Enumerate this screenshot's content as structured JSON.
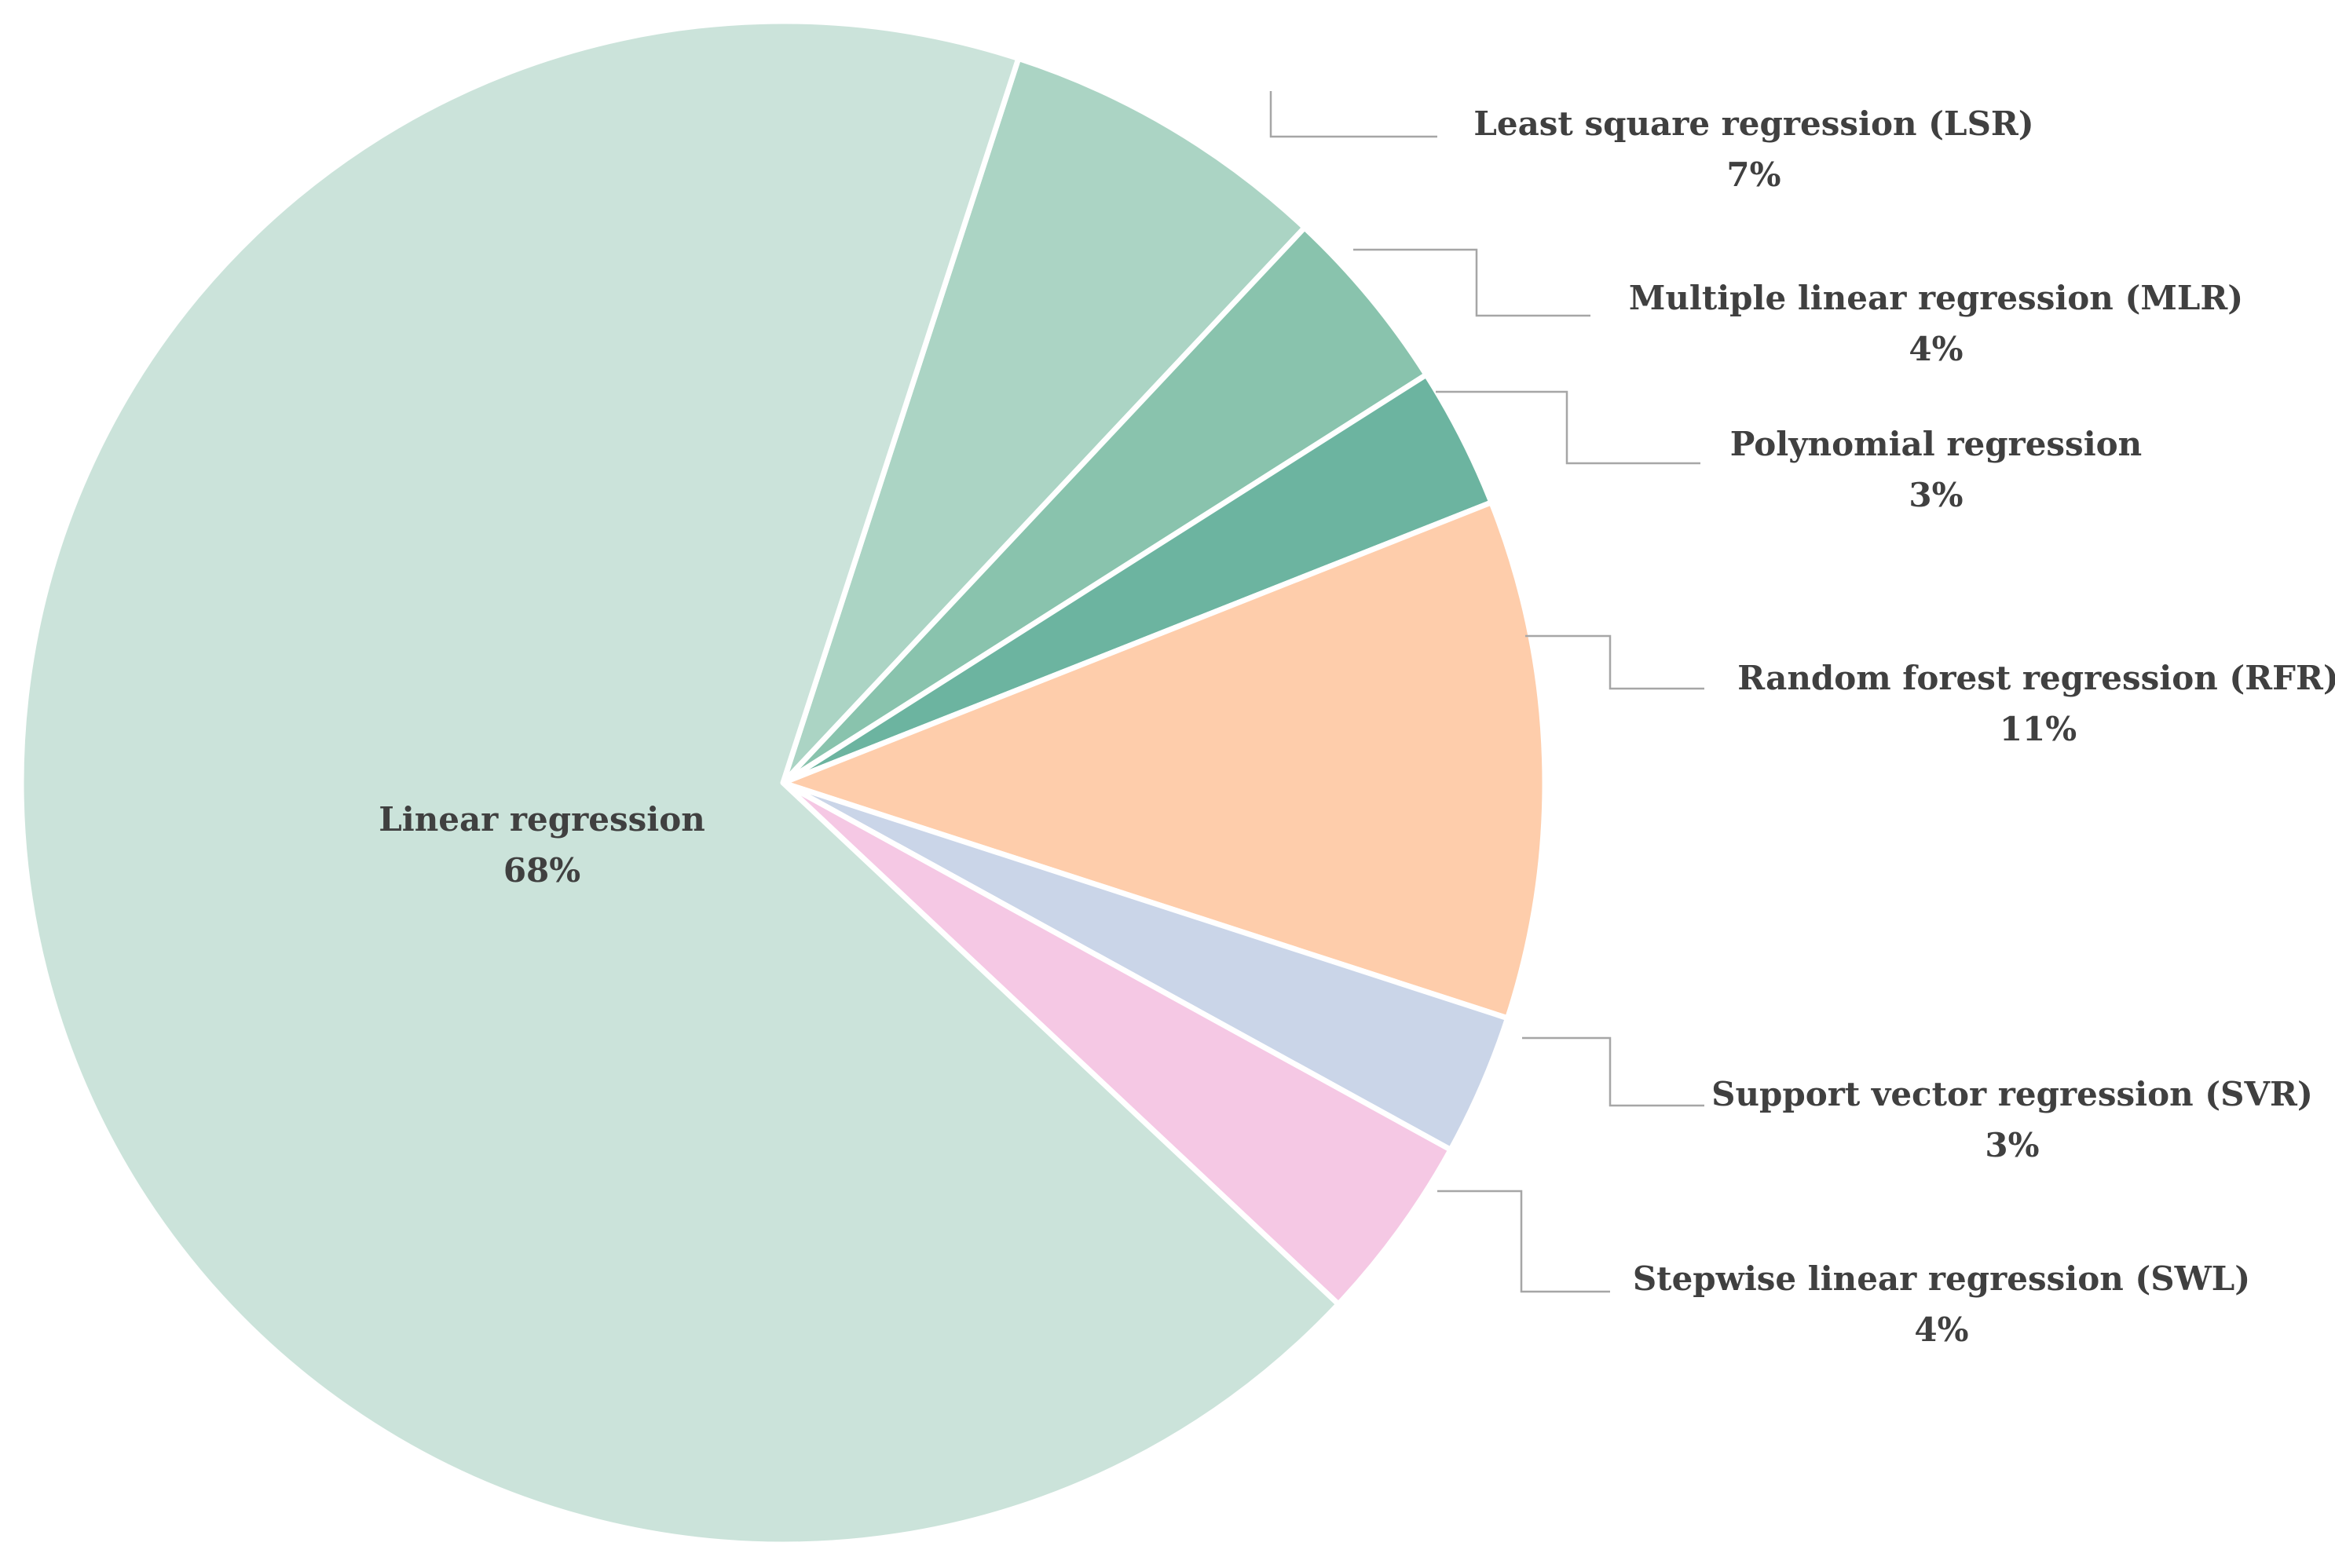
{
  "chart_data": {
    "type": "pie",
    "title": "",
    "start_angle_deg": 18,
    "direction": "clockwise",
    "slices": [
      {
        "label": "Least square regression (LSR)",
        "value": 7,
        "value_label": "7%",
        "color": "#abd4c4"
      },
      {
        "label": "Multiple linear regression (MLR)",
        "value": 4,
        "value_label": "4%",
        "color": "#89c3ad"
      },
      {
        "label": "Polynomial regression",
        "value": 3,
        "value_label": "3%",
        "color": "#6cb4a0"
      },
      {
        "label": "Random forest regression (RFR)",
        "value": 11,
        "value_label": "11%",
        "color": "#fecdab"
      },
      {
        "label": "Support vector regression (SVR)",
        "value": 3,
        "value_label": "3%",
        "color": "#cad5e8"
      },
      {
        "label": "Stepwise linear regression (SWL)",
        "value": 4,
        "value_label": "4%",
        "color": "#f5c8e4"
      },
      {
        "label": "Linear regression",
        "value": 68,
        "value_label": "68%",
        "color": "#cbe3da"
      }
    ]
  }
}
